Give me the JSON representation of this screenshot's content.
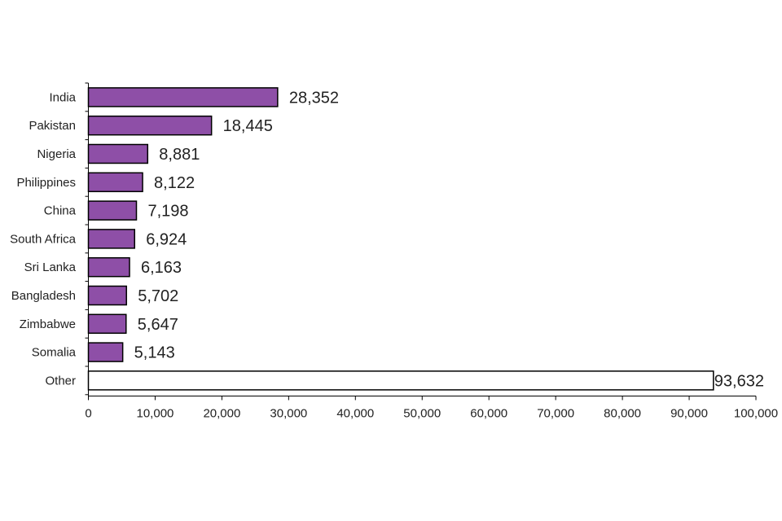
{
  "chart_data": {
    "type": "bar",
    "orientation": "horizontal",
    "title": "",
    "xlabel": "",
    "ylabel": "",
    "xlim": [
      0,
      100000
    ],
    "grid": false,
    "legend": "none",
    "categories": [
      "India",
      "Pakistan",
      "Nigeria",
      "Philippines",
      "China",
      "South Africa",
      "Sri Lanka",
      "Bangladesh",
      "Zimbabwe",
      "Somalia",
      "Other"
    ],
    "values": [
      28352,
      18445,
      8881,
      8122,
      7198,
      6924,
      6163,
      5702,
      5647,
      5143,
      93632
    ],
    "value_labels": [
      "28,352",
      "18,445",
      "8,881",
      "8,122",
      "7,198",
      "6,924",
      "6,163",
      "5,702",
      "5,647",
      "5,143",
      "93,632"
    ],
    "x_ticks": [
      0,
      10000,
      20000,
      30000,
      40000,
      50000,
      60000,
      70000,
      80000,
      90000,
      100000
    ],
    "x_tick_labels": [
      "0",
      "10,000",
      "20,000",
      "30,000",
      "40,000",
      "50,000",
      "60,000",
      "70,000",
      "80,000",
      "90,000",
      "100,000"
    ],
    "bar_colors": [
      "#8e4fa7",
      "#8e4fa7",
      "#8e4fa7",
      "#8e4fa7",
      "#8e4fa7",
      "#8e4fa7",
      "#8e4fa7",
      "#8e4fa7",
      "#8e4fa7",
      "#8e4fa7",
      "#ffffff"
    ],
    "bar_outline_color": "#000000",
    "axis_color": "#000000"
  }
}
